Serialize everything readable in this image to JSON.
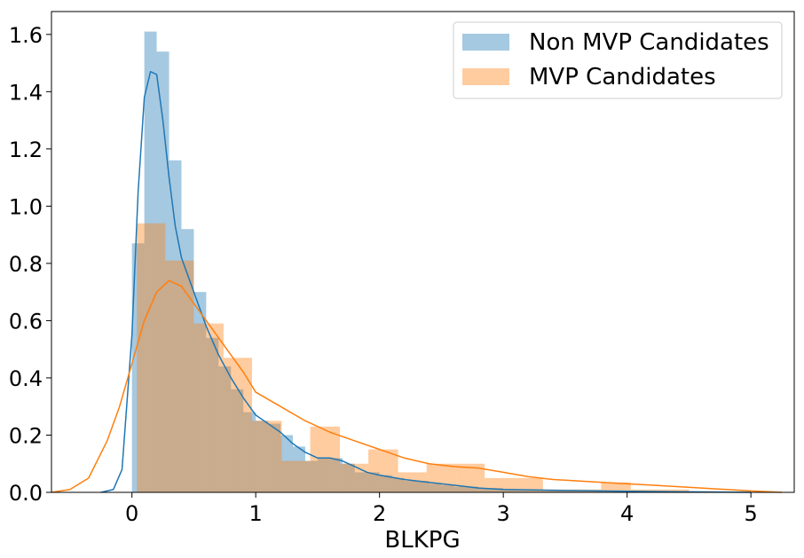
{
  "chart_data": {
    "type": "histogram",
    "title": "",
    "xlabel": "BLKPG",
    "ylabel": "",
    "xlim": [
      -0.65,
      5.35
    ],
    "ylim": [
      0.0,
      1.68
    ],
    "xticks": [
      0,
      1,
      2,
      3,
      4,
      5
    ],
    "xtick_labels": [
      "0",
      "1",
      "2",
      "3",
      "4",
      "5"
    ],
    "yticks": [
      0.0,
      0.2,
      0.4,
      0.6,
      0.8,
      1.0,
      1.2,
      1.4,
      1.6
    ],
    "ytick_labels": [
      "0.0",
      "0.2",
      "0.4",
      "0.6",
      "0.8",
      "1.0",
      "1.2",
      "1.4",
      "1.6"
    ],
    "grid": false,
    "legend_position": "top-right",
    "series": [
      {
        "name": "Non MVP Candidates",
        "color": "#1f77b4",
        "hist_alpha": 0.4,
        "bin_edges": [
          0.0,
          0.1,
          0.2,
          0.3,
          0.4,
          0.5,
          0.6,
          0.7,
          0.8,
          0.9,
          1.0,
          1.1,
          1.2,
          1.3,
          1.4,
          1.5,
          1.6,
          1.7,
          1.8,
          1.9,
          2.0,
          2.1,
          2.2,
          2.3,
          2.4,
          2.5,
          2.6,
          2.7,
          2.8,
          2.9,
          3.0,
          3.1,
          3.2,
          3.3,
          3.4,
          3.5,
          3.6,
          3.7,
          3.8,
          3.9,
          4.0,
          4.1,
          4.2,
          4.3,
          4.4,
          4.5,
          4.6,
          4.7,
          4.8,
          4.9,
          5.0
        ],
        "bin_values": [
          0.87,
          1.61,
          1.54,
          1.16,
          0.92,
          0.7,
          0.54,
          0.44,
          0.36,
          0.28,
          0.25,
          0.24,
          0.2,
          0.16,
          0.11,
          0.12,
          0.12,
          0.1,
          0.07,
          0.07,
          0.06,
          0.05,
          0.04,
          0.04,
          0.03,
          0.025,
          0.02,
          0.02,
          0.015,
          0.015,
          0.012,
          0.01,
          0.008,
          0.007,
          0.006,
          0.005,
          0.005,
          0.004,
          0.004,
          0.004,
          0.004,
          0.003,
          0.003,
          0.003,
          0.003,
          0.002,
          0.002,
          0.002,
          0.002,
          0.002
        ],
        "kde_x": [
          -0.25,
          -0.15,
          -0.08,
          0.0,
          0.05,
          0.1,
          0.15,
          0.2,
          0.25,
          0.3,
          0.35,
          0.4,
          0.5,
          0.6,
          0.7,
          0.8,
          0.9,
          1.0,
          1.1,
          1.2,
          1.3,
          1.4,
          1.5,
          1.6,
          1.7,
          1.8,
          1.9,
          2.0,
          2.2,
          2.4,
          2.6,
          2.8,
          3.0,
          3.3,
          3.6,
          4.0,
          4.5,
          5.0
        ],
        "kde_y": [
          0.0,
          0.01,
          0.08,
          0.55,
          1.05,
          1.38,
          1.47,
          1.46,
          1.3,
          1.1,
          0.93,
          0.82,
          0.7,
          0.58,
          0.48,
          0.4,
          0.33,
          0.27,
          0.24,
          0.21,
          0.17,
          0.14,
          0.12,
          0.12,
          0.11,
          0.09,
          0.07,
          0.06,
          0.045,
          0.035,
          0.025,
          0.015,
          0.01,
          0.008,
          0.006,
          0.004,
          0.002,
          0.0
        ]
      },
      {
        "name": "MVP Candidates",
        "color": "#ff7f0e",
        "hist_alpha": 0.4,
        "bin_edges": [
          0.04,
          0.27,
          0.5,
          0.74,
          0.97,
          1.21,
          1.44,
          1.68,
          1.91,
          2.15,
          2.38,
          2.62,
          2.85,
          3.09,
          3.32,
          3.56,
          3.79,
          4.03,
          4.26,
          4.5
        ],
        "bin_values": [
          0.94,
          0.81,
          0.59,
          0.47,
          0.25,
          0.11,
          0.23,
          0.1,
          0.15,
          0.07,
          0.1,
          0.1,
          0.05,
          0.05,
          0.01,
          0.01,
          0.035,
          0.01,
          0.01
        ],
        "kde_x": [
          -0.65,
          -0.5,
          -0.35,
          -0.2,
          -0.1,
          0.0,
          0.1,
          0.2,
          0.3,
          0.4,
          0.5,
          0.6,
          0.7,
          0.8,
          0.9,
          1.0,
          1.2,
          1.4,
          1.6,
          1.8,
          2.0,
          2.2,
          2.4,
          2.6,
          2.8,
          3.0,
          3.2,
          3.4,
          3.6,
          3.8,
          4.0,
          4.2,
          4.4,
          4.6,
          4.8,
          5.0,
          5.25
        ],
        "kde_y": [
          0.0,
          0.01,
          0.05,
          0.18,
          0.3,
          0.45,
          0.6,
          0.7,
          0.74,
          0.72,
          0.66,
          0.6,
          0.54,
          0.48,
          0.42,
          0.35,
          0.3,
          0.25,
          0.21,
          0.18,
          0.15,
          0.12,
          0.1,
          0.09,
          0.085,
          0.07,
          0.055,
          0.045,
          0.04,
          0.035,
          0.03,
          0.025,
          0.02,
          0.015,
          0.01,
          0.005,
          0.0
        ]
      }
    ]
  }
}
